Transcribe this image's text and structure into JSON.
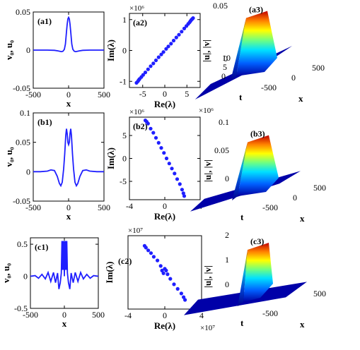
{
  "chart_data": [
    {
      "id": "a1",
      "type": "line",
      "panel_label": "(a1)",
      "xlabel": "x",
      "ylabel": "v₀, u₀",
      "xlim": [
        -500,
        500
      ],
      "ylim": [
        -0.05,
        0.05
      ],
      "xticks": [
        -500,
        0,
        500
      ],
      "yticks": [
        -0.05,
        0,
        0.05
      ],
      "xtick_labels": [
        "-500",
        "0",
        "500"
      ],
      "ytick_labels": [
        "-0.05",
        "0",
        "0.05"
      ],
      "series": [
        {
          "color": "#1f1fff",
          "x": [
            -500,
            -300,
            -200,
            -150,
            -100,
            -80,
            -60,
            -45,
            -30,
            -20,
            -10,
            0,
            10,
            20,
            30,
            45,
            60,
            80,
            100,
            150,
            200,
            300,
            500
          ],
          "y": [
            0,
            0,
            -0.0003,
            -0.001,
            -0.002,
            -0.0015,
            0.001,
            0.008,
            0.024,
            0.034,
            0.041,
            0.043,
            0.041,
            0.034,
            0.024,
            0.008,
            0.001,
            -0.0015,
            -0.002,
            -0.001,
            -0.0003,
            0,
            0
          ]
        }
      ]
    },
    {
      "id": "a2",
      "type": "scatter",
      "panel_label": "(a2)",
      "xlabel": "Re(λ)",
      "ylabel": "Im(λ)",
      "xlim": [
        -8,
        8
      ],
      "ylim": [
        -1.2,
        1.2
      ],
      "xticks": [
        -5,
        0,
        5
      ],
      "yticks": [
        -1,
        0,
        1
      ],
      "xtick_labels": [
        "-5",
        "0",
        "5"
      ],
      "ytick_labels": [
        "-1",
        "0",
        "1"
      ],
      "x_exponent": "",
      "y_exponent": "×10⁶",
      "series": [
        {
          "color": "#1f1fff",
          "x": [
            -6.4,
            -6.1,
            -5.9,
            -5.7,
            -5.3,
            -4.9,
            -4.4,
            -3.8,
            -3.2,
            -2.6,
            -2.0,
            -1.4,
            -0.8,
            -0.3,
            0.3,
            0.8,
            1.4,
            2.0,
            2.6,
            3.2,
            3.8,
            4.4,
            4.9,
            5.3,
            5.6,
            5.8,
            6.0,
            6.2,
            6.4
          ],
          "y": [
            -1.05,
            -1.0,
            -0.96,
            -0.92,
            -0.86,
            -0.79,
            -0.71,
            -0.61,
            -0.51,
            -0.42,
            -0.32,
            -0.22,
            -0.13,
            -0.05,
            0.05,
            0.13,
            0.22,
            0.32,
            0.42,
            0.51,
            0.61,
            0.71,
            0.79,
            0.86,
            0.91,
            0.95,
            0.99,
            1.02,
            1.05
          ]
        }
      ]
    },
    {
      "id": "a3",
      "type": "surface",
      "panel_label": "(a3)",
      "xlabel": "x",
      "ylabel": "t",
      "zlabel": "|u|, |v|",
      "xlim": [
        -500,
        500
      ],
      "ylim": [
        0,
        10
      ],
      "zlim": [
        0,
        0.05
      ],
      "xtick_labels": [
        "-500",
        "0",
        "500"
      ],
      "ytick_labels": [
        "0",
        "5",
        "10"
      ],
      "ztick_labels": [
        "0",
        "0.05"
      ],
      "peak": 0.043
    },
    {
      "id": "b1",
      "type": "line",
      "panel_label": "(b1)",
      "xlabel": "x",
      "ylabel": "v₀, u₀",
      "xlim": [
        -500,
        500
      ],
      "ylim": [
        -0.05,
        0.1
      ],
      "xticks": [
        -500,
        0,
        500
      ],
      "yticks": [
        -0.05,
        0,
        0.05,
        0.1
      ],
      "xtick_labels": [
        "-500",
        "0",
        "500"
      ],
      "ytick_labels": [
        "-0.05",
        "0",
        "0.05",
        "0.1"
      ],
      "series": [
        {
          "color": "#1f1fff",
          "x": [
            -500,
            -400,
            -300,
            -250,
            -200,
            -160,
            -130,
            -110,
            -90,
            -70,
            -55,
            -40,
            -30,
            -20,
            -10,
            0,
            10,
            20,
            30,
            40,
            55,
            70,
            90,
            110,
            130,
            160,
            200,
            250,
            300,
            400,
            500
          ],
          "y": [
            0,
            0,
            0.001,
            0.003,
            0.002,
            -0.008,
            -0.02,
            -0.024,
            -0.018,
            0.005,
            0.03,
            0.062,
            0.073,
            0.065,
            0.05,
            0.046,
            0.05,
            0.065,
            0.073,
            0.062,
            0.03,
            0.005,
            -0.018,
            -0.024,
            -0.02,
            -0.008,
            0.002,
            0.003,
            0.001,
            0,
            0
          ]
        }
      ]
    },
    {
      "id": "b2",
      "type": "scatter",
      "panel_label": "(b2)",
      "xlabel": "Re(λ)",
      "ylabel": "Im(λ)",
      "xlim": [
        -4,
        4
      ],
      "ylim": [
        -9,
        9
      ],
      "xticks": [
        -4,
        0,
        4
      ],
      "yticks": [
        -5,
        0,
        5
      ],
      "xtick_labels": [
        "-4",
        "0",
        "4"
      ],
      "ytick_labels": [
        "-5",
        "0",
        "5"
      ],
      "x_exponent": "×10⁶",
      "y_exponent": "×10⁶",
      "series": [
        {
          "color": "#1f1fff",
          "x": [
            -2.2,
            -2.05,
            -1.9,
            -1.6,
            -1.3,
            -1.0,
            -0.7,
            -0.4,
            -0.1,
            0.2,
            0.5,
            0.8,
            1.1,
            1.4,
            1.7,
            1.95,
            2.1,
            2.2
          ],
          "y": [
            8.3,
            8.0,
            7.6,
            6.5,
            5.6,
            4.5,
            3.4,
            2.3,
            1.2,
            0.0,
            -1.1,
            -2.2,
            -3.3,
            -4.5,
            -5.6,
            -6.8,
            -7.6,
            -8.2
          ]
        }
      ]
    },
    {
      "id": "b3",
      "type": "surface",
      "panel_label": "(b3)",
      "xlabel": "x",
      "ylabel": "t",
      "zlabel": "|u|, |v|",
      "xlim": [
        -500,
        500
      ],
      "ylim": [
        0,
        10
      ],
      "zlim": [
        0,
        0.1
      ],
      "xtick_labels": [
        "-500",
        "0",
        "500"
      ],
      "ytick_labels": [],
      "ztick_labels": [
        "0",
        "0.05",
        "0.1"
      ],
      "peak": 0.073
    },
    {
      "id": "c1",
      "type": "line",
      "panel_label": "(c1)",
      "xlabel": "x",
      "ylabel": "v₀, u₀",
      "xlim": [
        -500,
        500
      ],
      "ylim": [
        -0.5,
        0.6
      ],
      "xticks": [
        -500,
        0,
        500
      ],
      "yticks": [
        -0.5,
        0,
        0.5
      ],
      "xtick_labels": [
        "-500",
        "0",
        "500"
      ],
      "ytick_labels": [
        "-0.5",
        "0",
        "0.5"
      ],
      "series": [
        {
          "color": "#1f1fff",
          "x": [
            -500,
            -430,
            -380,
            -330,
            -280,
            -240,
            -200,
            -160,
            -130,
            -100,
            -80,
            -60,
            -45,
            -35,
            -25,
            -18,
            -12,
            -6,
            0,
            6,
            12,
            18,
            25,
            35,
            45,
            60,
            80,
            100,
            130,
            160,
            200,
            240,
            280,
            330,
            380,
            430,
            500
          ],
          "y": [
            0,
            0.01,
            -0.03,
            0.03,
            -0.04,
            0.06,
            -0.08,
            0.06,
            -0.1,
            0.05,
            -0.2,
            -0.1,
            0.05,
            0.55,
            0.1,
            0.55,
            0.1,
            0.55,
            0.0,
            0.55,
            0.1,
            0.55,
            0.1,
            0.55,
            0.05,
            -0.1,
            -0.2,
            0.05,
            -0.1,
            0.06,
            -0.08,
            0.06,
            -0.04,
            0.03,
            -0.03,
            0.01,
            0
          ]
        }
      ]
    },
    {
      "id": "c2",
      "type": "scatter",
      "panel_label": "(c2)",
      "xlabel": "Re(λ)",
      "ylabel": "Im(λ)",
      "xlim": [
        -4,
        4
      ],
      "ylim": [
        -2,
        2
      ],
      "xticks": [
        -4,
        0,
        4
      ],
      "yticks": [],
      "xtick_labels": [
        "-4",
        "0",
        "4"
      ],
      "ytick_labels": [],
      "x_exponent": "×10⁷",
      "y_exponent": "×10⁷",
      "series": [
        {
          "color": "#1f1fff",
          "x": [
            -2.2,
            -2.05,
            -1.8,
            -1.5,
            -1.2,
            -0.8,
            -0.45,
            -0.3,
            -0.15,
            0.0,
            0.15,
            0.3,
            0.6,
            1.0,
            1.4,
            1.8,
            2.05,
            2.2
          ],
          "y": [
            1.45,
            1.35,
            1.2,
            1.05,
            0.85,
            0.65,
            0.35,
            0.1,
            -0.05,
            0.2,
            0.1,
            -0.1,
            -0.35,
            -0.65,
            -0.9,
            -1.15,
            -1.35,
            -1.5
          ]
        }
      ]
    },
    {
      "id": "c3",
      "type": "surface",
      "panel_label": "(c3)",
      "xlabel": "x",
      "ylabel": "t",
      "zlabel": "|u|, |v|",
      "xlim": [
        -500,
        500
      ],
      "ylim": [
        0,
        10
      ],
      "zlim": [
        0,
        2
      ],
      "xtick_labels": [
        "-500",
        "500"
      ],
      "ytick_labels": [],
      "ztick_labels": [
        "0",
        "1",
        "2"
      ],
      "peak": 1.6
    }
  ]
}
